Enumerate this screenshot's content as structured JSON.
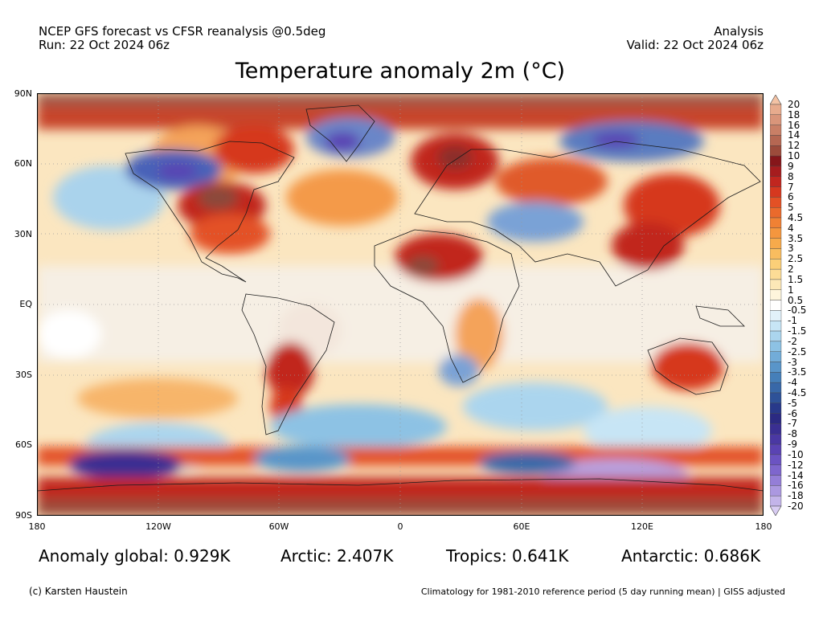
{
  "header": {
    "left_line1": "NCEP GFS forecast vs CFSR reanalysis @0.5deg",
    "left_line2": "Run: 22 Oct 2024 06z",
    "right_line1": "Analysis",
    "right_line2": "Valid: 22 Oct 2024 06z"
  },
  "title": "Temperature anomaly 2m (°C)",
  "map": {
    "lat_labels": [
      "90N",
      "60N",
      "30N",
      "EQ",
      "30S",
      "60S",
      "90S"
    ],
    "lon_labels": [
      "180",
      "120W",
      "60W",
      "0",
      "60E",
      "120E",
      "180"
    ]
  },
  "colorbar": {
    "labels": [
      "20",
      "18",
      "16",
      "14",
      "12",
      "10",
      "9",
      "8",
      "7",
      "6",
      "5",
      "4.5",
      "4",
      "3.5",
      "3",
      "2.5",
      "2",
      "1.5",
      "1",
      "0.5",
      "-0.5",
      "-1",
      "-1.5",
      "-2",
      "-2.5",
      "-3",
      "-3.5",
      "-4",
      "-4.5",
      "-5",
      "-6",
      "-7",
      "-8",
      "-9",
      "-10",
      "-12",
      "-14",
      "-16",
      "-18",
      "-20"
    ],
    "colors": [
      "#f3c2a4",
      "#e7ab8d",
      "#d9957a",
      "#c97f66",
      "#b56752",
      "#9c4b3b",
      "#86161a",
      "#a61c1e",
      "#c1261f",
      "#d6381f",
      "#e35125",
      "#ea6a2c",
      "#f08134",
      "#f4963e",
      "#f7aa4b",
      "#f9bd5f",
      "#fbcf78",
      "#fcdc96",
      "#fde8b7",
      "#fef5dc",
      "#ffffff",
      "#e1f1fa",
      "#c7e5f5",
      "#abd5ee",
      "#8dc2e4",
      "#72acd8",
      "#5995c9",
      "#457fb9",
      "#3868a8",
      "#2e5298",
      "#28398a",
      "#2b2a82",
      "#3a2f92",
      "#4a38a3",
      "#5a43b3",
      "#6b53c2",
      "#7e66cd",
      "#947ed7",
      "#ab98e0",
      "#c3b4e9",
      "#d8ccf2"
    ]
  },
  "stats": {
    "global": "Anomaly global: 0.929K",
    "arctic": "Arctic: 2.407K",
    "tropics": "Tropics: 0.641K",
    "antarctic": "Antarctic: 0.686K"
  },
  "footer": {
    "left": "(c) Karsten Haustein",
    "right": "Climatology for 1981-2010 reference period (5 day running mean) | GISS adjusted"
  }
}
